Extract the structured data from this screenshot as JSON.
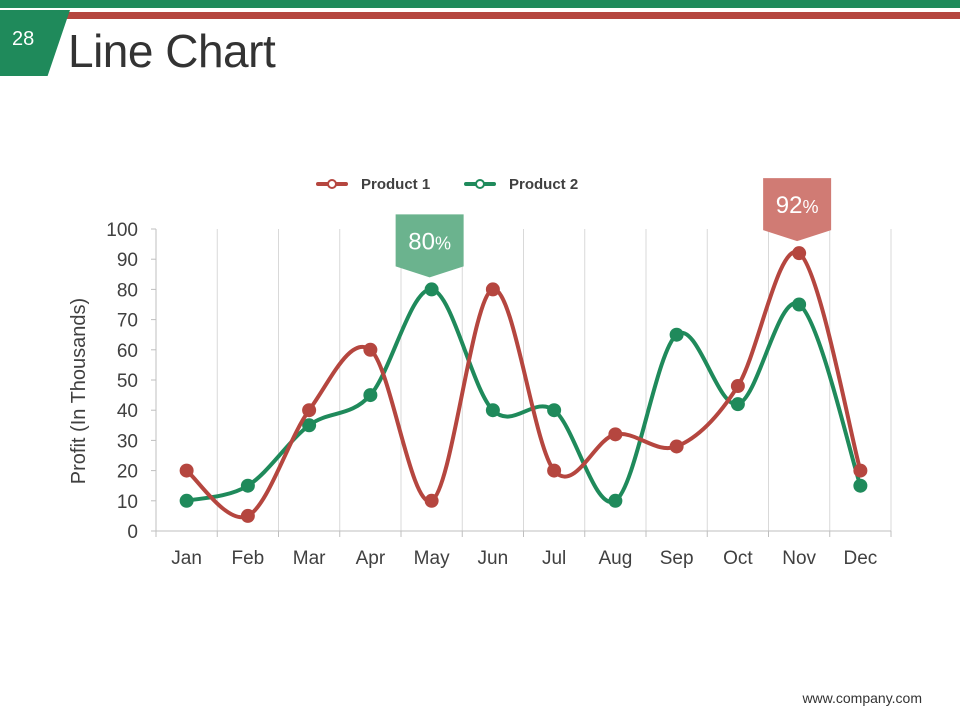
{
  "slide": {
    "page_number": "28",
    "title": "Line Chart",
    "footer_url": "www.company.com"
  },
  "colors": {
    "green": "#1f8a5b",
    "red": "#b5463f",
    "callout_green": "#6bb38e",
    "callout_red": "#d07b74"
  },
  "chart_data": {
    "type": "line",
    "title": "",
    "xlabel": "",
    "ylabel": "Profit (In Thousands)",
    "ylim": [
      0,
      100
    ],
    "yticks": [
      0,
      10,
      20,
      30,
      40,
      50,
      60,
      70,
      80,
      90,
      100
    ],
    "categories": [
      "Jan",
      "Feb",
      "Mar",
      "Apr",
      "May",
      "Jun",
      "Jul",
      "Aug",
      "Sep",
      "Oct",
      "Nov",
      "Dec"
    ],
    "grid": "vertical",
    "legend": "top-center",
    "series": [
      {
        "name": "Product 1",
        "color": "#b5463f",
        "values": [
          20,
          5,
          40,
          60,
          10,
          80,
          20,
          32,
          28,
          48,
          92,
          20
        ]
      },
      {
        "name": "Product 2",
        "color": "#1f8a5b",
        "values": [
          10,
          15,
          35,
          45,
          80,
          40,
          40,
          10,
          65,
          42,
          75,
          15
        ]
      }
    ],
    "annotations": [
      {
        "text": "80",
        "unit": "%",
        "category": "May",
        "series": "Product 2",
        "color": "#6bb38e"
      },
      {
        "text": "92",
        "unit": "%",
        "category": "Nov",
        "series": "Product 1",
        "color": "#d07b74"
      }
    ]
  }
}
